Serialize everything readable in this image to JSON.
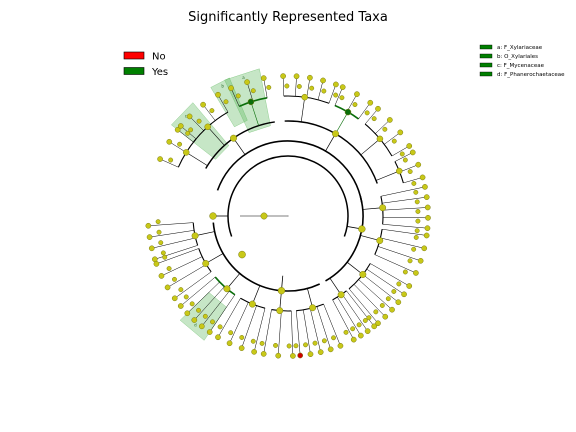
{
  "chart_data": {
    "type": "cladogram",
    "title": "Significantly Represented Taxa",
    "legend": [
      {
        "label": "No",
        "color": "#ff0000"
      },
      {
        "label": "Yes",
        "color": "#008000"
      }
    ],
    "taxa_legend": [
      {
        "label": "a: F_Xylariaceae",
        "color": "#008000"
      },
      {
        "label": "b: O_Xylariales",
        "color": "#008000"
      },
      {
        "label": "c: F_Mycenaceae",
        "color": "#008000"
      },
      {
        "label": "d: F_Phanerochaetaceae",
        "color": "#008000"
      }
    ],
    "highlights": [
      {
        "label": "a"
      },
      {
        "label": "b"
      },
      {
        "label": "c"
      },
      {
        "label": "d"
      }
    ],
    "colors": {
      "node": "#c8c818",
      "node_edge": "#7a7a10",
      "sig": "#0a6e0a",
      "red": "#cc0000",
      "highlight": "#5cb85c"
    }
  }
}
